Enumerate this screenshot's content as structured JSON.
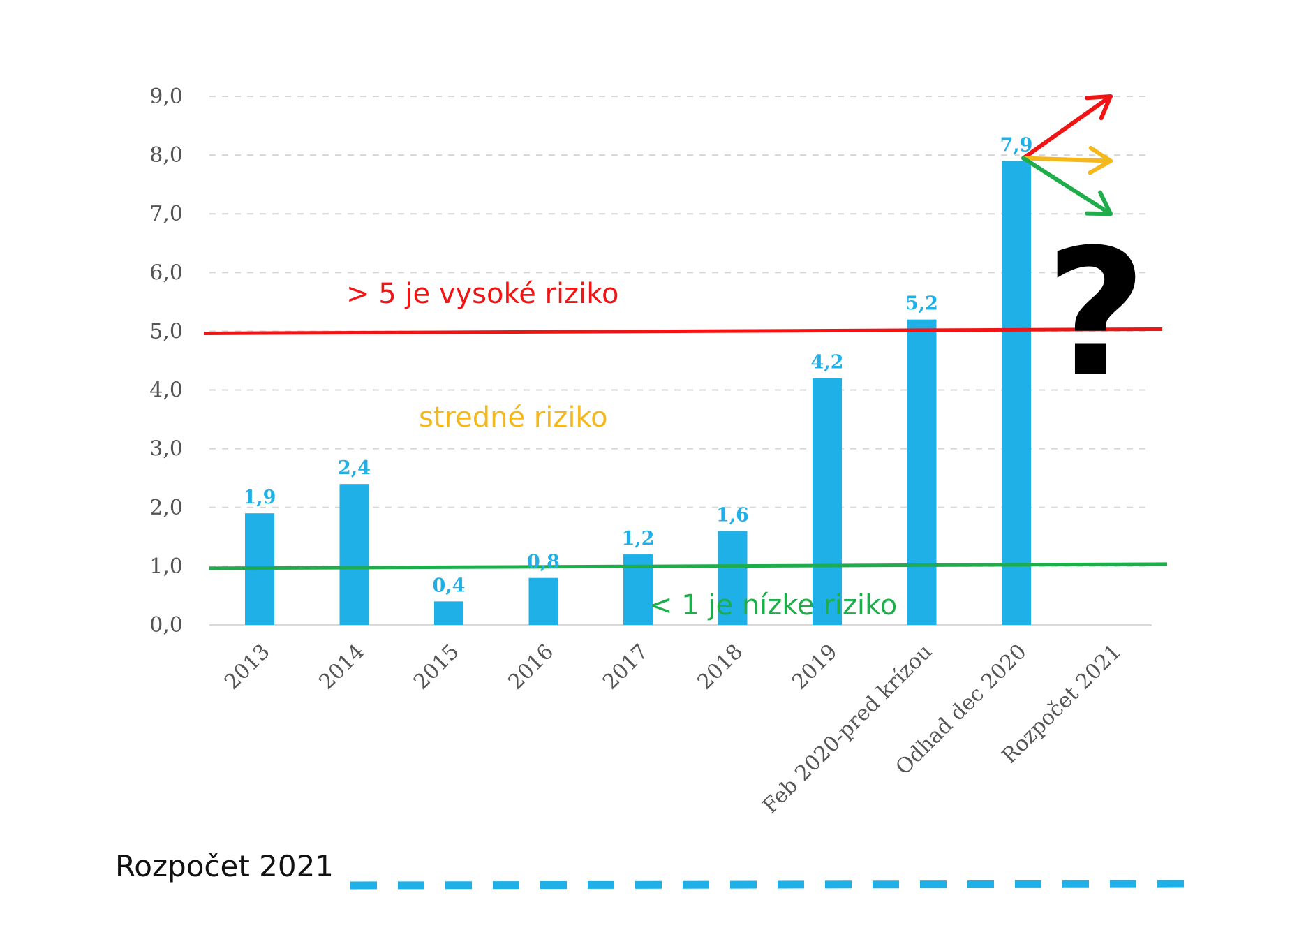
{
  "chart_data": {
    "type": "bar",
    "categories": [
      "2013",
      "2014",
      "2015",
      "2016",
      "2017",
      "2018",
      "2019",
      "Feb 2020-pred krízou",
      "Odhad dec 2020",
      "Rozpočet 2021"
    ],
    "values": [
      1.9,
      2.4,
      0.4,
      0.8,
      1.2,
      1.6,
      4.2,
      5.2,
      7.9,
      null
    ],
    "value_labels": [
      "1,9",
      "2,4",
      "0,4",
      "0,8",
      "1,2",
      "1,6",
      "4,2",
      "5,2",
      "7,9",
      ""
    ],
    "ylim": [
      0,
      9
    ],
    "yticks": [
      0,
      1,
      2,
      3,
      4,
      5,
      6,
      7,
      8,
      9
    ],
    "ytick_labels": [
      "0,0",
      "1,0",
      "2,0",
      "3,0",
      "4,0",
      "5,0",
      "6,0",
      "7,0",
      "8,0",
      "9,0"
    ],
    "grid": true,
    "bar_color": "#1eb0e6",
    "thresholds": [
      {
        "value": 5,
        "color": "#f01414",
        "label": "> 5 je vysoké riziko"
      },
      {
        "value": 1,
        "color": "#1fad4c",
        "label": "< 1 je nízke riziko"
      }
    ],
    "zone_label": {
      "text": "stredné riziko",
      "color": "#f5b81c"
    },
    "scenario_arrows": [
      {
        "from_category": "Odhad dec 2020",
        "from_value": 7.9,
        "to_value": 9.0,
        "color": "#f01414"
      },
      {
        "from_category": "Odhad dec 2020",
        "from_value": 7.9,
        "to_value": 7.9,
        "color": "#f5b81c"
      },
      {
        "from_category": "Odhad dec 2020",
        "from_value": 7.9,
        "to_value": 7.0,
        "color": "#1fad4c"
      }
    ],
    "question_mark": "?",
    "footer_label": "Rozpočet 2021",
    "footer_line_color": "#1eb0e6"
  }
}
